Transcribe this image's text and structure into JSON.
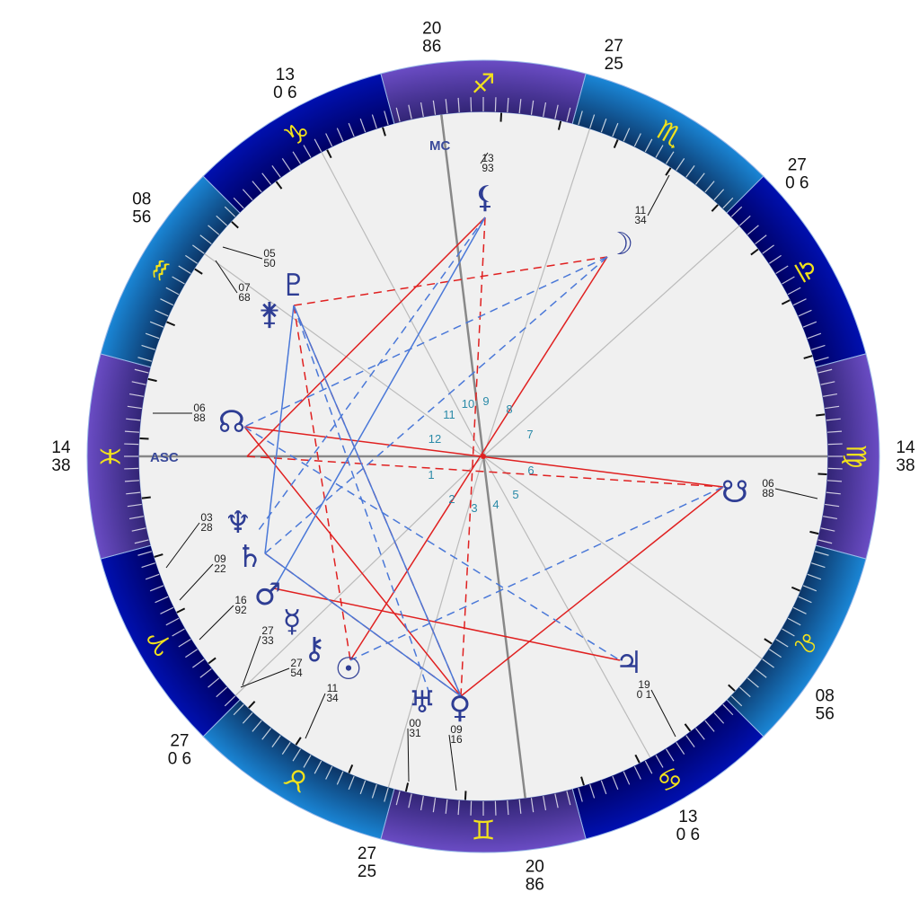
{
  "axes": {
    "asc": "ASC",
    "mc": "MC"
  },
  "zodiac": [
    {
      "name": "sagittarius",
      "glyph": "♐",
      "band": "purple"
    },
    {
      "name": "scorpio",
      "glyph": "♏",
      "band": "blue"
    },
    {
      "name": "libra",
      "glyph": "♎",
      "band": "dark"
    },
    {
      "name": "virgo",
      "glyph": "♍",
      "band": "purple"
    },
    {
      "name": "leo",
      "glyph": "♌",
      "band": "blue"
    },
    {
      "name": "cancer",
      "glyph": "♋",
      "band": "dark"
    },
    {
      "name": "gemini",
      "glyph": "♊",
      "band": "purple"
    },
    {
      "name": "taurus",
      "glyph": "♉",
      "band": "blue"
    },
    {
      "name": "aries",
      "glyph": "♈",
      "band": "dark"
    },
    {
      "name": "pisces",
      "glyph": "♓",
      "band": "purple"
    },
    {
      "name": "aquarius",
      "glyph": "♒",
      "band": "blue"
    },
    {
      "name": "capricorn",
      "glyph": "♑",
      "band": "dark"
    }
  ],
  "band_colors": {
    "purple": [
      "#6a4cc4",
      "#2e2270"
    ],
    "blue": [
      "#1a86d6",
      "#0b2f5e"
    ],
    "dark": [
      "#0010b0",
      "#00005e"
    ]
  },
  "cusps": [
    {
      "house": 1,
      "deg": "14",
      "min": "38"
    },
    {
      "house": 2,
      "deg": "08",
      "min": "56"
    },
    {
      "house": 3,
      "deg": "13",
      "min": "0 6"
    },
    {
      "house": 4,
      "deg": "20",
      "min": "86"
    },
    {
      "house": 5,
      "deg": "27",
      "min": "25"
    },
    {
      "house": 6,
      "deg": "27",
      "min": "0 6"
    },
    {
      "house": 7,
      "deg": "14",
      "min": "38"
    },
    {
      "house": 8,
      "deg": "08",
      "min": "56"
    },
    {
      "house": 9,
      "deg": "13",
      "min": "0 6"
    },
    {
      "house": 10,
      "deg": "20",
      "min": "86"
    },
    {
      "house": 11,
      "deg": "27",
      "min": "25"
    },
    {
      "house": 12,
      "deg": "27",
      "min": "0 6"
    }
  ],
  "house_numbers": [
    "1",
    "2",
    "3",
    "4",
    "5",
    "6",
    "7",
    "8",
    "9",
    "10",
    "11",
    "12"
  ],
  "planets": [
    {
      "id": "lilith",
      "glyph": "⚸",
      "deg": "13",
      "min": "93"
    },
    {
      "id": "moon",
      "glyph": "☽",
      "deg": "11",
      "min": "34"
    },
    {
      "id": "pluto",
      "glyph": "♇",
      "deg": "05",
      "min": "50"
    },
    {
      "id": "juno",
      "glyph": "⚵",
      "deg": "07",
      "min": "68"
    },
    {
      "id": "north-node",
      "glyph": "☊",
      "deg": "06",
      "min": "88"
    },
    {
      "id": "south-node",
      "glyph": "☋",
      "deg": "06",
      "min": "88"
    },
    {
      "id": "neptune",
      "glyph": "♆",
      "deg": "03",
      "min": "28"
    },
    {
      "id": "saturn",
      "glyph": "♄",
      "deg": "09",
      "min": "22"
    },
    {
      "id": "mars",
      "glyph": "♂",
      "deg": "16",
      "min": "92"
    },
    {
      "id": "mercury",
      "glyph": "☿",
      "deg": "27",
      "min": "33"
    },
    {
      "id": "chiron",
      "glyph": "⚷",
      "deg": "27",
      "min": "54"
    },
    {
      "id": "sun",
      "glyph": "☉",
      "deg": "11",
      "min": "34"
    },
    {
      "id": "uranus",
      "glyph": "♅",
      "deg": "00",
      "min": "31"
    },
    {
      "id": "venus",
      "glyph": "♀",
      "deg": "09",
      "min": "16"
    },
    {
      "id": "jupiter",
      "glyph": "♃",
      "deg": "19",
      "min": "0 1"
    }
  ],
  "aspect_colors": {
    "red": "#e02020",
    "blue": "#4a78d8"
  },
  "aspects": [
    {
      "from": "lilith",
      "to": "asc",
      "color": "red",
      "style": "solid"
    },
    {
      "from": "moon",
      "to": "sun",
      "color": "red",
      "style": "solid"
    },
    {
      "from": "north-node",
      "to": "south-node",
      "color": "red",
      "style": "solid"
    },
    {
      "from": "north-node",
      "to": "venus",
      "color": "red",
      "style": "solid"
    },
    {
      "from": "mars",
      "to": "jupiter",
      "color": "red",
      "style": "solid"
    },
    {
      "from": "venus",
      "to": "south-node",
      "color": "red",
      "style": "solid"
    },
    {
      "from": "pluto",
      "to": "moon",
      "color": "red",
      "style": "dashed"
    },
    {
      "from": "lilith",
      "to": "venus",
      "color": "red",
      "style": "dashed"
    },
    {
      "from": "asc",
      "to": "south-node",
      "color": "red",
      "style": "dashed"
    },
    {
      "from": "pluto",
      "to": "sun",
      "color": "red",
      "style": "dashed"
    },
    {
      "from": "pluto",
      "to": "venus",
      "color": "red",
      "style": "dashed"
    },
    {
      "from": "saturn",
      "to": "venus",
      "color": "red",
      "style": "dashed"
    },
    {
      "from": "lilith",
      "to": "mars",
      "color": "blue",
      "style": "solid"
    },
    {
      "from": "pluto",
      "to": "saturn",
      "color": "blue",
      "style": "solid"
    },
    {
      "from": "pluto",
      "to": "venus",
      "color": "blue",
      "style": "solid"
    },
    {
      "from": "saturn",
      "to": "venus",
      "color": "blue",
      "style": "solid"
    },
    {
      "from": "moon",
      "to": "north-node",
      "color": "blue",
      "style": "dashed"
    },
    {
      "from": "moon",
      "to": "saturn",
      "color": "blue",
      "style": "dashed"
    },
    {
      "from": "lilith",
      "to": "neptune",
      "color": "blue",
      "style": "dashed"
    },
    {
      "from": "south-node",
      "to": "sun",
      "color": "blue",
      "style": "dashed"
    },
    {
      "from": "north-node",
      "to": "jupiter",
      "color": "blue",
      "style": "dashed"
    },
    {
      "from": "pluto",
      "to": "uranus",
      "color": "blue",
      "style": "dashed"
    }
  ]
}
